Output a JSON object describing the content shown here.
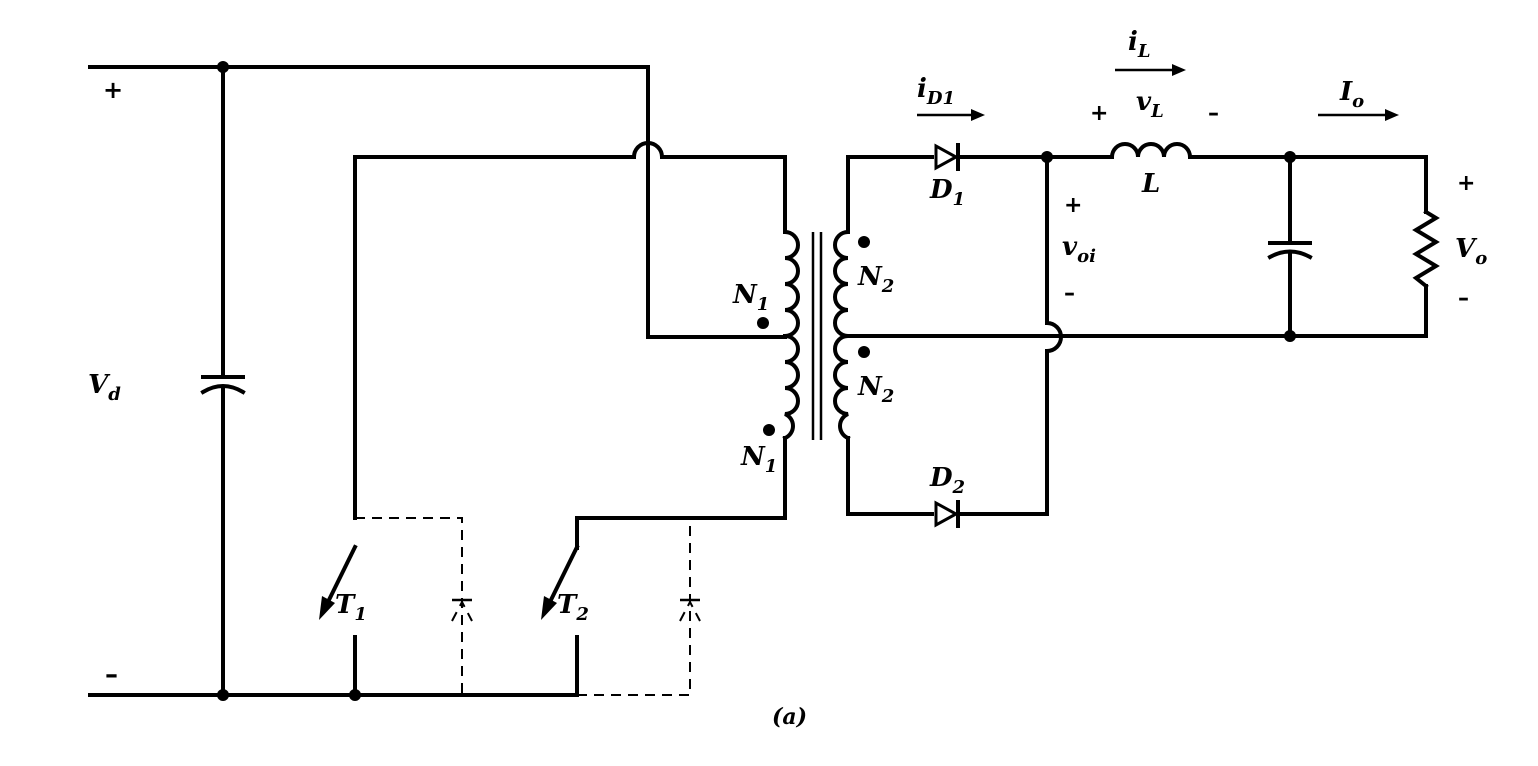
{
  "labels": {
    "vd_plus": "+",
    "vd_minus": "–",
    "vd": "V",
    "vd_sub": "d",
    "n1_top": "N",
    "n1_top_sub": "1",
    "n1_bot": "N",
    "n1_bot_sub": "1",
    "n2_top": "N",
    "n2_top_sub": "2",
    "n2_bot": "N",
    "n2_bot_sub": "2",
    "t1": "T",
    "t1_sub": "1",
    "t2": "T",
    "t2_sub": "2",
    "d1": "D",
    "d1_sub": "1",
    "d2": "D",
    "d2_sub": "2",
    "id1": "i",
    "id1_sub": "D1",
    "il": "i",
    "il_sub": "L",
    "vl_plus": "+",
    "vl": "v",
    "vl_sub": "L",
    "vl_minus": "–",
    "l": "L",
    "io": "I",
    "io_sub": "o",
    "voi_plus": "+",
    "voi": "v",
    "voi_sub": "oi",
    "voi_minus": "–",
    "vo_plus": "+",
    "vo": "V",
    "vo_sub": "o",
    "vo_minus": "–",
    "caption": "(a)"
  }
}
